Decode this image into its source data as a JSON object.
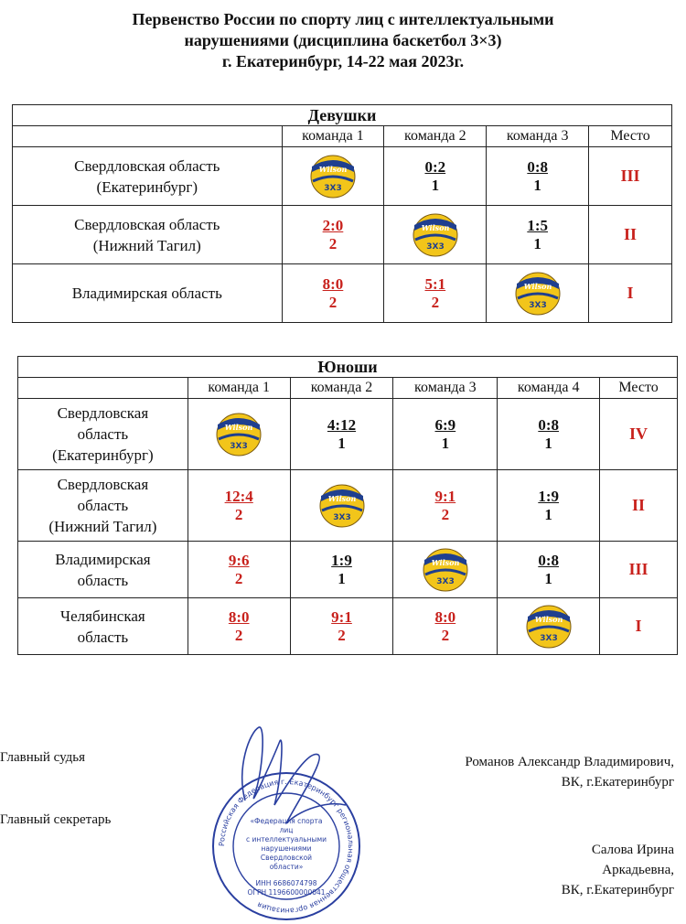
{
  "header": {
    "line1": "Первенство России по спорту лиц с интеллектуальными",
    "line2": "нарушениями (дисциплина баскетбол 3×3)",
    "line3": "г. Екатеринбург, 14-22 мая 2023г."
  },
  "colors": {
    "red": "#c8211c",
    "ball_blue": "#1f3f8f",
    "ball_yellow": "#f2c51a"
  },
  "girls": {
    "title": "Девушки",
    "columns": [
      "команда 1",
      "команда 2",
      "команда 3",
      "Место"
    ],
    "rows": [
      {
        "name1": "Свердловская область",
        "name2": "(Екатеринбург)",
        "cells": [
          {
            "type": "ball"
          },
          {
            "type": "score",
            "res": "0:2",
            "pts": "1",
            "win": false
          },
          {
            "type": "score",
            "res": "0:8",
            "pts": "1",
            "win": false
          }
        ],
        "place": "III"
      },
      {
        "name1": "Свердловская область",
        "name2": "(Нижний Тагил)",
        "cells": [
          {
            "type": "score",
            "res": "2:0",
            "pts": "2",
            "win": true
          },
          {
            "type": "ball"
          },
          {
            "type": "score",
            "res": "1:5",
            "pts": "1",
            "win": false
          }
        ],
        "place": "II"
      },
      {
        "name1": "Владимирская область",
        "name2": "",
        "cells": [
          {
            "type": "score",
            "res": "8:0",
            "pts": "2",
            "win": true
          },
          {
            "type": "score",
            "res": "5:1",
            "pts": "2",
            "win": true
          },
          {
            "type": "ball"
          }
        ],
        "place": "I"
      }
    ]
  },
  "boys": {
    "title": "Юноши",
    "columns": [
      "команда 1",
      "команда 2",
      "команда 3",
      "команда 4",
      "Место"
    ],
    "rows": [
      {
        "name1": "Свердловская",
        "name2": "область",
        "name3": "(Екатеринбург)",
        "cells": [
          {
            "type": "ball"
          },
          {
            "type": "score",
            "res": "4:12",
            "pts": "1",
            "win": false
          },
          {
            "type": "score",
            "res": "6:9",
            "pts": "1",
            "win": false
          },
          {
            "type": "score",
            "res": "0:8",
            "pts": "1",
            "win": false
          }
        ],
        "place": "IV"
      },
      {
        "name1": "Свердловская",
        "name2": "область",
        "name3": "(Нижний Тагил)",
        "cells": [
          {
            "type": "score",
            "res": "12:4",
            "pts": "2",
            "win": true
          },
          {
            "type": "ball"
          },
          {
            "type": "score",
            "res": "9:1",
            "pts": "2",
            "win": true
          },
          {
            "type": "score",
            "res": "1:9",
            "pts": "1",
            "win": false
          }
        ],
        "place": "II"
      },
      {
        "name1": "Владимирская",
        "name2": "область",
        "name3": "",
        "cells": [
          {
            "type": "score",
            "res": "9:6",
            "pts": "2",
            "win": true
          },
          {
            "type": "score",
            "res": "1:9",
            "pts": "1",
            "win": false
          },
          {
            "type": "ball"
          },
          {
            "type": "score",
            "res": "0:8",
            "pts": "1",
            "win": false
          }
        ],
        "place": "III"
      },
      {
        "name1": "Челябинская",
        "name2": "область",
        "name3": "",
        "cells": [
          {
            "type": "score",
            "res": "8:0",
            "pts": "2",
            "win": true
          },
          {
            "type": "score",
            "res": "9:1",
            "pts": "2",
            "win": true
          },
          {
            "type": "score",
            "res": "8:0",
            "pts": "2",
            "win": true
          },
          {
            "type": "ball"
          }
        ],
        "place": "I"
      }
    ]
  },
  "ball": {
    "brand": "Wilson",
    "mark": "3X3"
  },
  "signatures": {
    "judge_label": "Главный судья",
    "judge_name": "Романов Александр Владимирович,",
    "judge_city": "ВК, г.Екатеринбург",
    "secretary_label": "Главный секретарь",
    "secretary_name1": "Салова Ирина",
    "secretary_name2": "Аркадьевна,",
    "secretary_city": "ВК, г.Екатеринбург"
  },
  "stamp": {
    "ring": "Российская Федерация г. Екатеринбург региональная общественная организация",
    "line1": "«Федерация спорта",
    "line2": "лиц",
    "line3": "с интеллектуальными",
    "line4": "нарушениями",
    "line5": "Свердловской",
    "line6": "области»",
    "inn": "ИНН 6686074798",
    "ogrn": "ОГРН 1196600000041"
  }
}
